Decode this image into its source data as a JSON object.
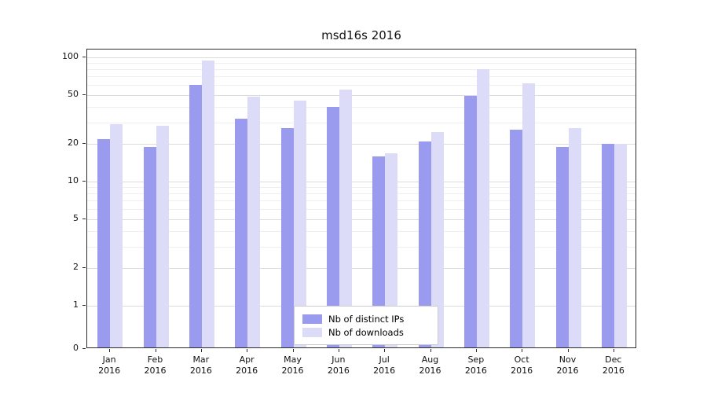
{
  "chart_data": {
    "type": "bar",
    "title": "msd16s 2016",
    "categories": [
      "Jan",
      "Feb",
      "Mar",
      "Apr",
      "May",
      "Jun",
      "Jul",
      "Aug",
      "Sep",
      "Oct",
      "Nov",
      "Dec"
    ],
    "year_label": "2016",
    "series": [
      {
        "name": "Nb of distinct IPs",
        "color": "#9a9aee",
        "values": [
          22,
          19,
          60,
          32,
          27,
          40,
          16,
          21,
          49,
          26,
          19,
          20
        ]
      },
      {
        "name": "Nb of downloads",
        "color": "#dcdcf8",
        "values": [
          29,
          28,
          95,
          48,
          45,
          55,
          17,
          25,
          80,
          62,
          27,
          20
        ]
      }
    ],
    "yscale": "symlog",
    "yticks": [
      0,
      1,
      2,
      5,
      10,
      20,
      50,
      100
    ],
    "ylim": [
      0,
      110
    ],
    "grid": true,
    "legend_position": "bottom-center"
  }
}
